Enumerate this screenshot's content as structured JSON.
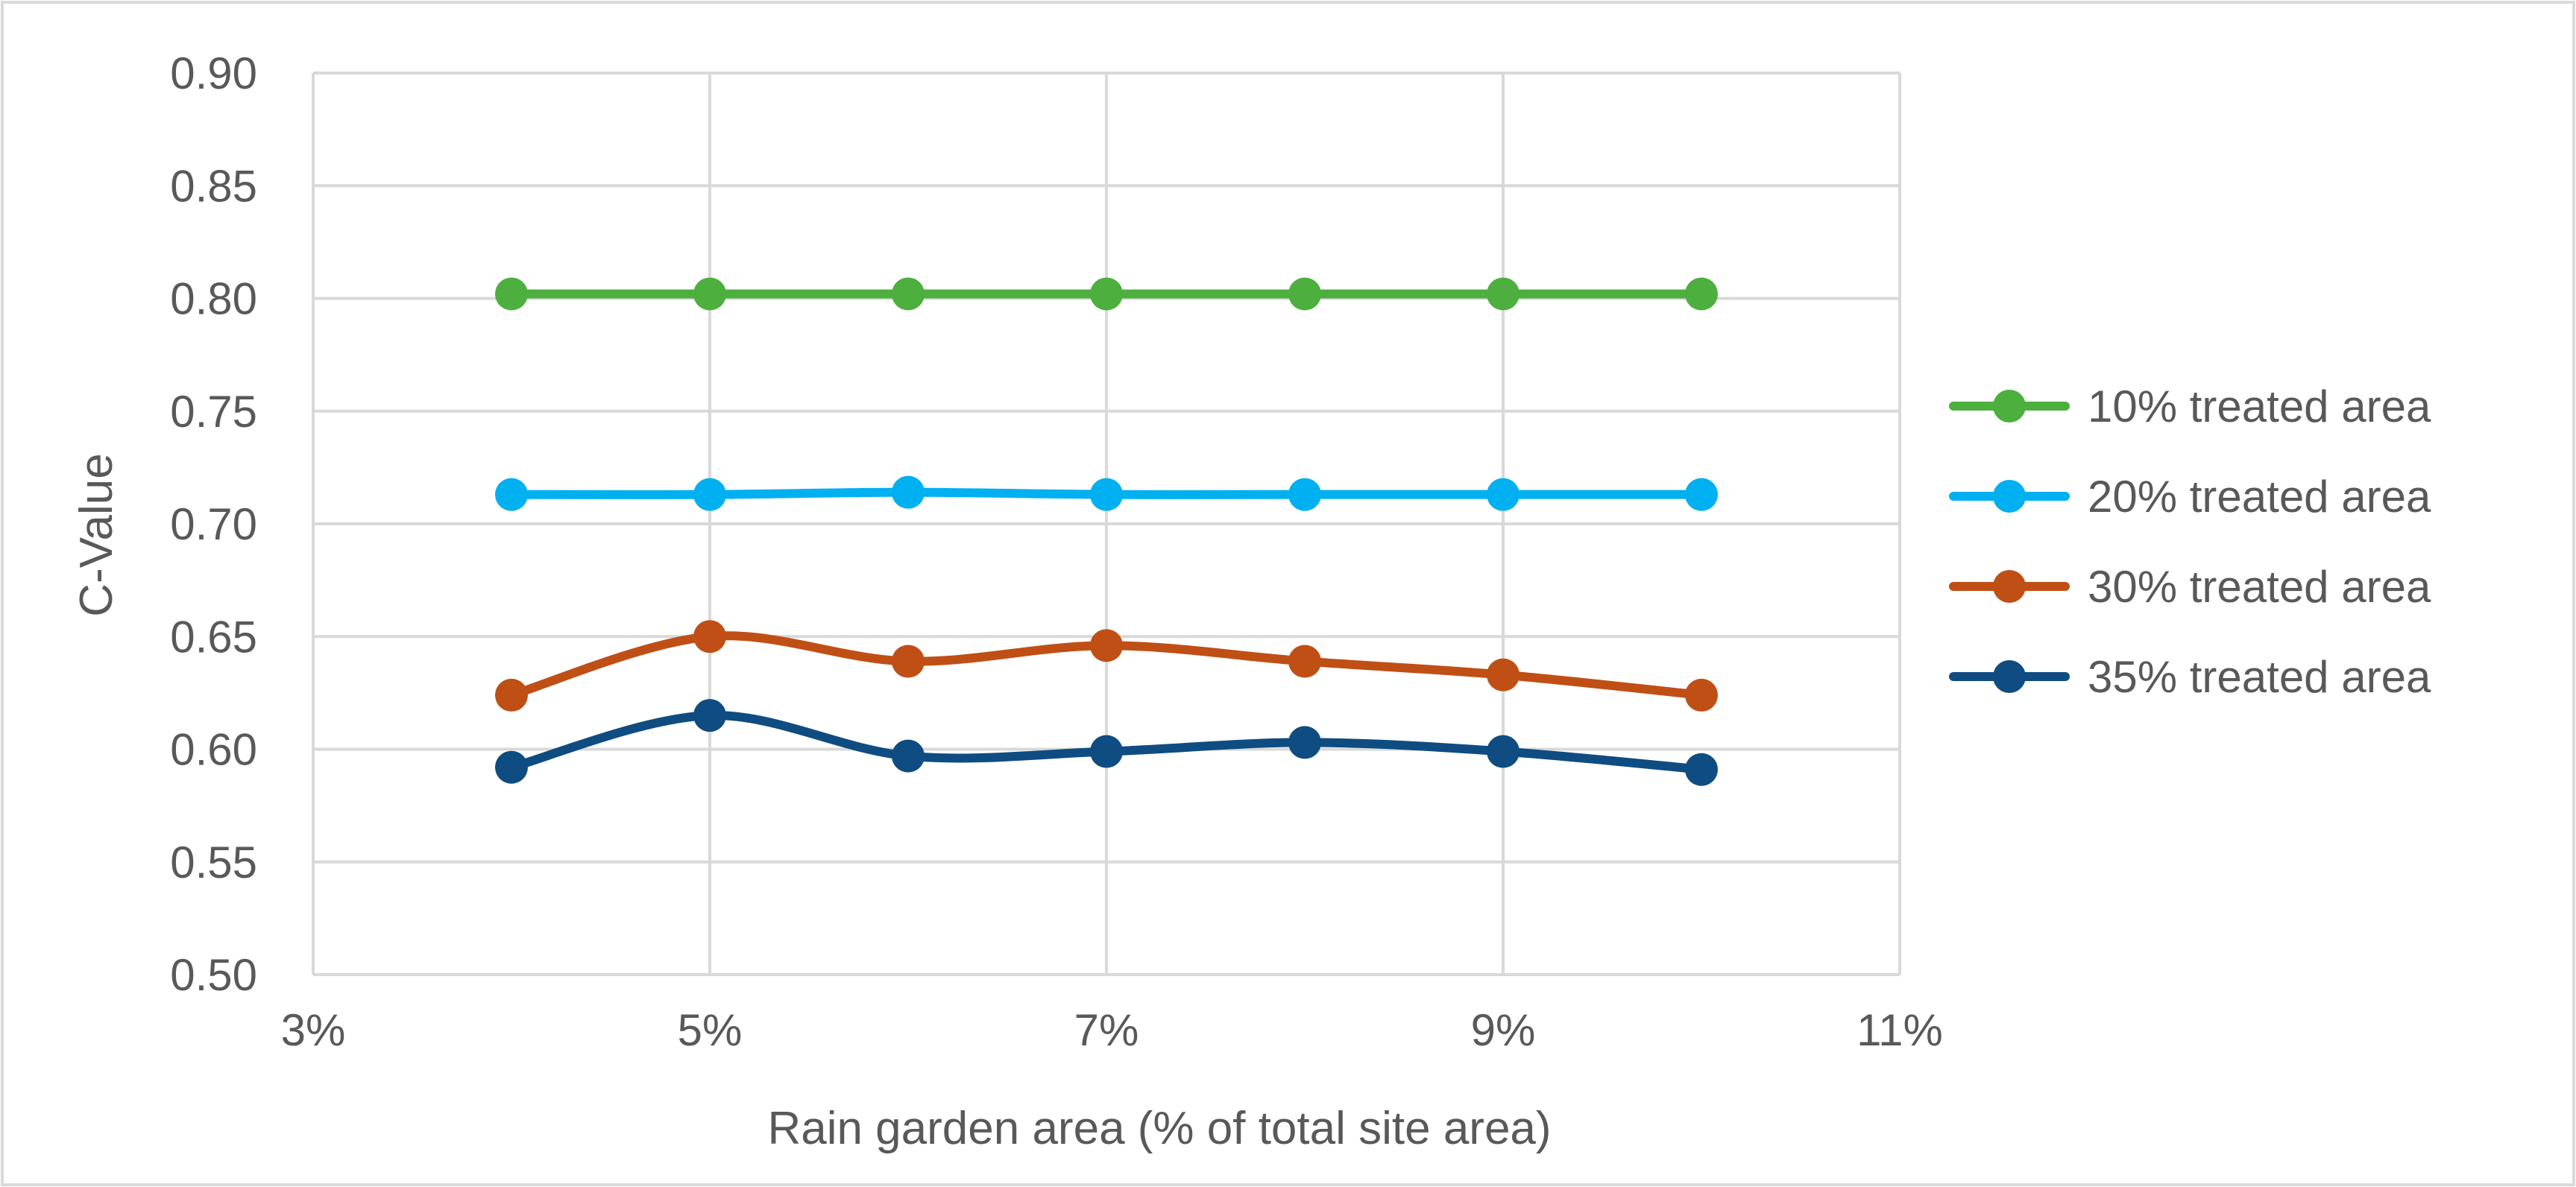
{
  "chart_data": {
    "type": "line",
    "title": "",
    "xlabel": "Rain garden area (% of total site area)",
    "ylabel": "C-Value",
    "xlim": [
      3,
      11
    ],
    "ylim": [
      0.5,
      0.9
    ],
    "x_ticks": [
      3,
      5,
      7,
      9,
      11
    ],
    "x_tick_labels": [
      "3%",
      "5%",
      "7%",
      "9%",
      "11%"
    ],
    "y_ticks": [
      0.5,
      0.55,
      0.6,
      0.65,
      0.7,
      0.75,
      0.8,
      0.85,
      0.9
    ],
    "y_tick_labels": [
      "0.50",
      "0.55",
      "0.60",
      "0.65",
      "0.70",
      "0.75",
      "0.80",
      "0.85",
      "0.90"
    ],
    "x_gridlines": [
      3,
      5,
      7,
      9,
      11
    ],
    "grid": true,
    "smooth": true,
    "legend_position": "right",
    "x": [
      4,
      5,
      6,
      7,
      8,
      9,
      10
    ],
    "series": [
      {
        "name": "10% treated area",
        "color": "#4CAF3E",
        "values": [
          0.802,
          0.802,
          0.802,
          0.802,
          0.802,
          0.802,
          0.802
        ]
      },
      {
        "name": "20% treated area",
        "color": "#00B0F0",
        "values": [
          0.713,
          0.713,
          0.714,
          0.713,
          0.713,
          0.713,
          0.713
        ]
      },
      {
        "name": "30% treated area",
        "color": "#C04F15",
        "values": [
          0.624,
          0.65,
          0.639,
          0.646,
          0.639,
          0.633,
          0.624
        ]
      },
      {
        "name": "35% treated area",
        "color": "#0F4C81",
        "values": [
          0.592,
          0.615,
          0.597,
          0.599,
          0.603,
          0.599,
          0.591
        ]
      }
    ]
  },
  "colors": {
    "grid": "#D9D9D9",
    "text": "#595959",
    "frame": "#D9D9D9"
  }
}
